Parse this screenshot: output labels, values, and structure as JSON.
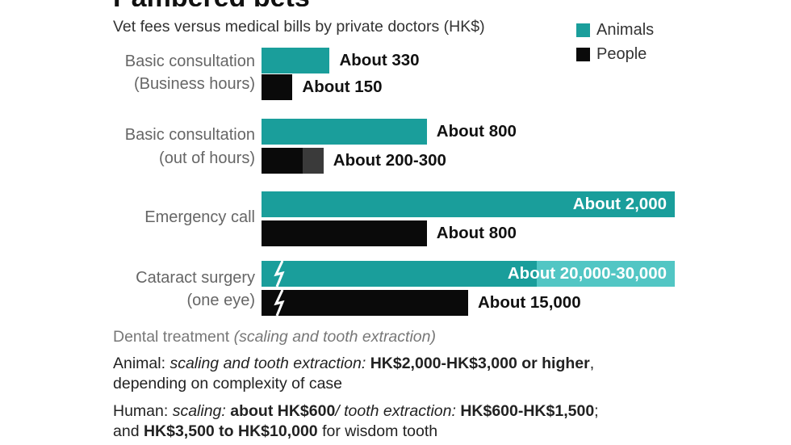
{
  "title": "Pampered pets",
  "subtitle": "Vet fees versus medical bills by private doctors (HK$)",
  "colors": {
    "animals": "#1a9e9b",
    "animals_light": "#52c6c4",
    "people": "#0a0a0a",
    "people_light": "#3a3a3a"
  },
  "chart_data": {
    "type": "bar",
    "orientation": "horizontal",
    "title": "Pampered pets",
    "subtitle": "Vet fees versus medical bills by private doctors (HK$)",
    "legend": {
      "position": "top-right",
      "entries": [
        "Animals",
        "People"
      ]
    },
    "grid": false,
    "categories": [
      [
        "Basic consultation",
        "(Business hours)"
      ],
      [
        "Basic consultation",
        "(out of hours)"
      ],
      [
        "Emergency call"
      ],
      [
        "Cataract surgery",
        "(one eye)"
      ]
    ],
    "series": [
      {
        "name": "Animals",
        "values": [
          330,
          800,
          2000,
          20000
        ],
        "range_high": [
          null,
          null,
          null,
          30000
        ],
        "labels": [
          "About 330",
          "About 800",
          "About 2,000",
          "About 20,000-30,000"
        ]
      },
      {
        "name": "People",
        "values": [
          150,
          200,
          800,
          15000
        ],
        "range_high": [
          null,
          300,
          null,
          null
        ],
        "labels": [
          "About 150",
          "About 200-300",
          "About 800",
          "About 15,000"
        ]
      }
    ],
    "axis_break": {
      "category_index": 3,
      "note": "broken bar"
    }
  },
  "dental": {
    "heading": "Dental treatment",
    "heading_italic": "(scaling and tooth extraction)",
    "animal": {
      "prefix": "Animal: ",
      "italic": "scaling and tooth extraction:",
      "bold": "HK$2,000-HK$3,000 or higher",
      "suffix": ",",
      "line2": "depending on complexity of case"
    },
    "human": {
      "prefix": "Human: ",
      "italic1": "scaling:",
      "bold1": "about HK$600",
      "italic2": "/ tooth extraction:",
      "bold2": "HK$600-HK$1,500",
      "suffix1": ";",
      "line2_prefix": "and ",
      "bold3": "HK$3,500 to HK$10,000",
      "line2_suffix": " for wisdom tooth"
    }
  }
}
